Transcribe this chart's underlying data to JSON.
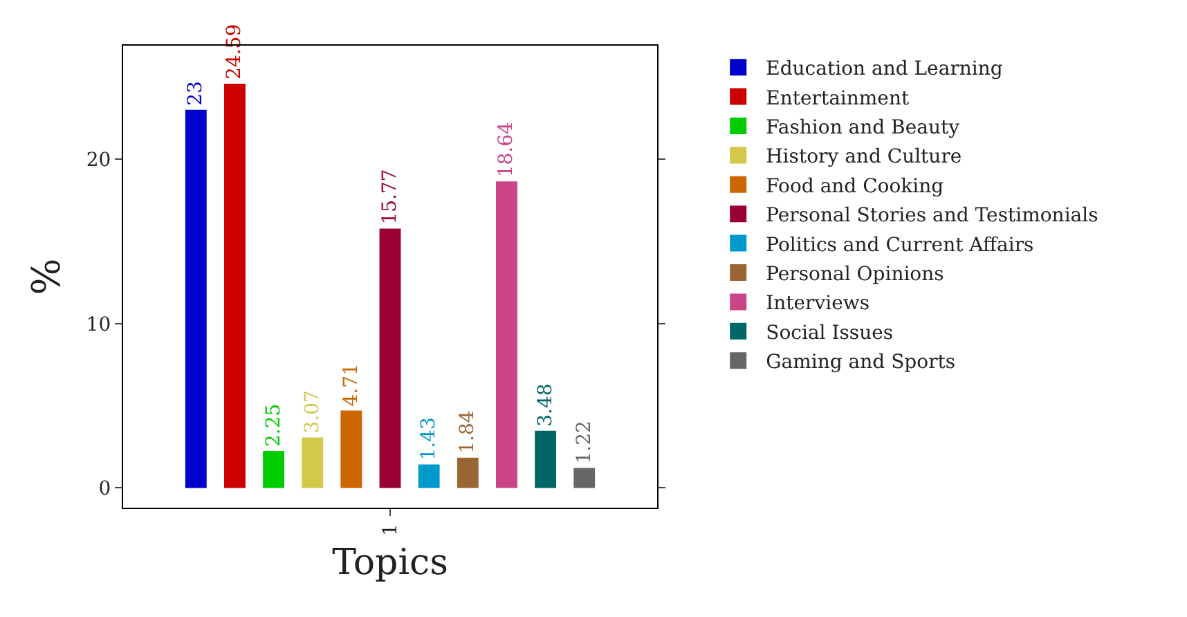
{
  "chart_data": {
    "type": "bar",
    "categories": [
      "1"
    ],
    "ylim": [
      -1.2,
      26.9
    ],
    "yticks": [
      0,
      10,
      20
    ],
    "xlabel": "Topics",
    "ylabel": "%",
    "data_labels": true,
    "grid": false,
    "legend": "right",
    "series": [
      {
        "name": "Education and Learning",
        "color": "#0000cc",
        "values": [
          23
        ]
      },
      {
        "name": "Entertainment",
        "color": "#cc0000",
        "values": [
          24.59
        ]
      },
      {
        "name": "Fashion and Beauty",
        "color": "#00cc00",
        "values": [
          2.25
        ]
      },
      {
        "name": "History and Culture",
        "color": "#d4c84a",
        "values": [
          3.07
        ]
      },
      {
        "name": "Food and Cooking",
        "color": "#cc6600",
        "values": [
          4.71
        ]
      },
      {
        "name": "Personal Stories and Testimonials",
        "color": "#990033",
        "values": [
          15.77
        ]
      },
      {
        "name": "Politics and Current Affairs",
        "color": "#0099cc",
        "values": [
          1.43
        ]
      },
      {
        "name": "Personal Opinions",
        "color": "#996633",
        "values": [
          1.84
        ]
      },
      {
        "name": "Interviews",
        "color": "#cc4488",
        "values": [
          18.64
        ]
      },
      {
        "name": "Social Issues",
        "color": "#006666",
        "values": [
          3.48
        ]
      },
      {
        "name": "Gaming and Sports",
        "color": "#666666",
        "values": [
          1.22
        ]
      }
    ]
  }
}
